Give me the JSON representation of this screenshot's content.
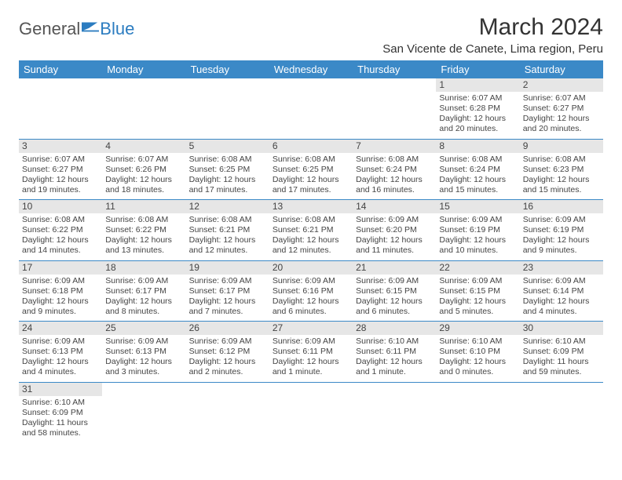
{
  "logo": {
    "part1": "General",
    "part2": "Blue"
  },
  "title": "March 2024",
  "location": "San Vicente de Canete, Lima region, Peru",
  "colors": {
    "header_bg": "#3b89c7",
    "header_text": "#ffffff",
    "daynum_bg": "#e6e6e6",
    "rule": "#3b89c7",
    "text": "#444444"
  },
  "weekdays": [
    "Sunday",
    "Monday",
    "Tuesday",
    "Wednesday",
    "Thursday",
    "Friday",
    "Saturday"
  ],
  "weeks": [
    [
      null,
      null,
      null,
      null,
      null,
      {
        "n": "1",
        "sunrise": "Sunrise: 6:07 AM",
        "sunset": "Sunset: 6:28 PM",
        "daylight": "Daylight: 12 hours and 20 minutes."
      },
      {
        "n": "2",
        "sunrise": "Sunrise: 6:07 AM",
        "sunset": "Sunset: 6:27 PM",
        "daylight": "Daylight: 12 hours and 20 minutes."
      }
    ],
    [
      {
        "n": "3",
        "sunrise": "Sunrise: 6:07 AM",
        "sunset": "Sunset: 6:27 PM",
        "daylight": "Daylight: 12 hours and 19 minutes."
      },
      {
        "n": "4",
        "sunrise": "Sunrise: 6:07 AM",
        "sunset": "Sunset: 6:26 PM",
        "daylight": "Daylight: 12 hours and 18 minutes."
      },
      {
        "n": "5",
        "sunrise": "Sunrise: 6:08 AM",
        "sunset": "Sunset: 6:25 PM",
        "daylight": "Daylight: 12 hours and 17 minutes."
      },
      {
        "n": "6",
        "sunrise": "Sunrise: 6:08 AM",
        "sunset": "Sunset: 6:25 PM",
        "daylight": "Daylight: 12 hours and 17 minutes."
      },
      {
        "n": "7",
        "sunrise": "Sunrise: 6:08 AM",
        "sunset": "Sunset: 6:24 PM",
        "daylight": "Daylight: 12 hours and 16 minutes."
      },
      {
        "n": "8",
        "sunrise": "Sunrise: 6:08 AM",
        "sunset": "Sunset: 6:24 PM",
        "daylight": "Daylight: 12 hours and 15 minutes."
      },
      {
        "n": "9",
        "sunrise": "Sunrise: 6:08 AM",
        "sunset": "Sunset: 6:23 PM",
        "daylight": "Daylight: 12 hours and 15 minutes."
      }
    ],
    [
      {
        "n": "10",
        "sunrise": "Sunrise: 6:08 AM",
        "sunset": "Sunset: 6:22 PM",
        "daylight": "Daylight: 12 hours and 14 minutes."
      },
      {
        "n": "11",
        "sunrise": "Sunrise: 6:08 AM",
        "sunset": "Sunset: 6:22 PM",
        "daylight": "Daylight: 12 hours and 13 minutes."
      },
      {
        "n": "12",
        "sunrise": "Sunrise: 6:08 AM",
        "sunset": "Sunset: 6:21 PM",
        "daylight": "Daylight: 12 hours and 12 minutes."
      },
      {
        "n": "13",
        "sunrise": "Sunrise: 6:08 AM",
        "sunset": "Sunset: 6:21 PM",
        "daylight": "Daylight: 12 hours and 12 minutes."
      },
      {
        "n": "14",
        "sunrise": "Sunrise: 6:09 AM",
        "sunset": "Sunset: 6:20 PM",
        "daylight": "Daylight: 12 hours and 11 minutes."
      },
      {
        "n": "15",
        "sunrise": "Sunrise: 6:09 AM",
        "sunset": "Sunset: 6:19 PM",
        "daylight": "Daylight: 12 hours and 10 minutes."
      },
      {
        "n": "16",
        "sunrise": "Sunrise: 6:09 AM",
        "sunset": "Sunset: 6:19 PM",
        "daylight": "Daylight: 12 hours and 9 minutes."
      }
    ],
    [
      {
        "n": "17",
        "sunrise": "Sunrise: 6:09 AM",
        "sunset": "Sunset: 6:18 PM",
        "daylight": "Daylight: 12 hours and 9 minutes."
      },
      {
        "n": "18",
        "sunrise": "Sunrise: 6:09 AM",
        "sunset": "Sunset: 6:17 PM",
        "daylight": "Daylight: 12 hours and 8 minutes."
      },
      {
        "n": "19",
        "sunrise": "Sunrise: 6:09 AM",
        "sunset": "Sunset: 6:17 PM",
        "daylight": "Daylight: 12 hours and 7 minutes."
      },
      {
        "n": "20",
        "sunrise": "Sunrise: 6:09 AM",
        "sunset": "Sunset: 6:16 PM",
        "daylight": "Daylight: 12 hours and 6 minutes."
      },
      {
        "n": "21",
        "sunrise": "Sunrise: 6:09 AM",
        "sunset": "Sunset: 6:15 PM",
        "daylight": "Daylight: 12 hours and 6 minutes."
      },
      {
        "n": "22",
        "sunrise": "Sunrise: 6:09 AM",
        "sunset": "Sunset: 6:15 PM",
        "daylight": "Daylight: 12 hours and 5 minutes."
      },
      {
        "n": "23",
        "sunrise": "Sunrise: 6:09 AM",
        "sunset": "Sunset: 6:14 PM",
        "daylight": "Daylight: 12 hours and 4 minutes."
      }
    ],
    [
      {
        "n": "24",
        "sunrise": "Sunrise: 6:09 AM",
        "sunset": "Sunset: 6:13 PM",
        "daylight": "Daylight: 12 hours and 4 minutes."
      },
      {
        "n": "25",
        "sunrise": "Sunrise: 6:09 AM",
        "sunset": "Sunset: 6:13 PM",
        "daylight": "Daylight: 12 hours and 3 minutes."
      },
      {
        "n": "26",
        "sunrise": "Sunrise: 6:09 AM",
        "sunset": "Sunset: 6:12 PM",
        "daylight": "Daylight: 12 hours and 2 minutes."
      },
      {
        "n": "27",
        "sunrise": "Sunrise: 6:09 AM",
        "sunset": "Sunset: 6:11 PM",
        "daylight": "Daylight: 12 hours and 1 minute."
      },
      {
        "n": "28",
        "sunrise": "Sunrise: 6:10 AM",
        "sunset": "Sunset: 6:11 PM",
        "daylight": "Daylight: 12 hours and 1 minute."
      },
      {
        "n": "29",
        "sunrise": "Sunrise: 6:10 AM",
        "sunset": "Sunset: 6:10 PM",
        "daylight": "Daylight: 12 hours and 0 minutes."
      },
      {
        "n": "30",
        "sunrise": "Sunrise: 6:10 AM",
        "sunset": "Sunset: 6:09 PM",
        "daylight": "Daylight: 11 hours and 59 minutes."
      }
    ],
    [
      {
        "n": "31",
        "sunrise": "Sunrise: 6:10 AM",
        "sunset": "Sunset: 6:09 PM",
        "daylight": "Daylight: 11 hours and 58 minutes."
      },
      null,
      null,
      null,
      null,
      null,
      null
    ]
  ]
}
